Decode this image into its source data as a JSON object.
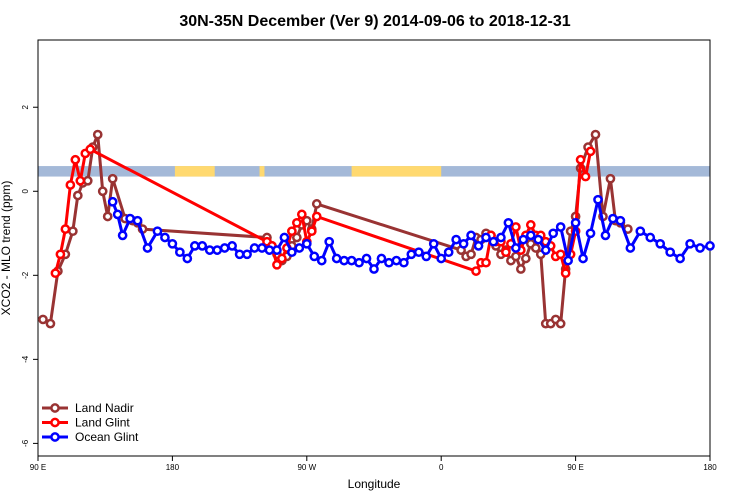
{
  "chart_data": {
    "type": "line",
    "title": "30N-35N December (Ver 9)   2014-09-06 to 2018-12-31",
    "xlabel": "Longitude",
    "ylabel": "XCO2 - MLO trend (ppm)",
    "xlim": [
      -90,
      180
    ],
    "ylim": [
      -6.3,
      3.6
    ],
    "x_ticks": [
      {
        "value": -90,
        "label": "90 E"
      },
      {
        "value": -36,
        "label": "180"
      },
      {
        "value": 18,
        "label": "90 W"
      },
      {
        "value": 72,
        "label": "0"
      },
      {
        "value": 126,
        "label": "90 E"
      },
      {
        "value": 180,
        "label": "180"
      }
    ],
    "y_ticks": [
      {
        "value": 2,
        "label": "2"
      },
      {
        "value": 0,
        "label": "0"
      },
      {
        "value": -2,
        "label": "-2"
      },
      {
        "value": -4,
        "label": "-4"
      },
      {
        "value": -6,
        "label": "-6"
      }
    ],
    "grid": false,
    "legend_position": "bottom-left",
    "land_ocean_band": {
      "y_range": [
        0.35,
        0.6
      ],
      "ocean_color": "#a4b9d8",
      "land_color": "#ffd970",
      "land_segments": [
        [
          -35,
          -19
        ],
        [
          -1,
          1
        ],
        [
          36,
          72
        ]
      ]
    },
    "series": [
      {
        "name": "Land Nadir",
        "color": "#993333",
        "x": [
          -88,
          -85,
          -82,
          -79,
          -76,
          -74,
          -72,
          -70,
          -68,
          -66,
          -64,
          -62,
          -60,
          -55,
          -52,
          -50,
          -48,
          2,
          4,
          6,
          8,
          10,
          12,
          14,
          16,
          18,
          20,
          22,
          80,
          82,
          84,
          86,
          88,
          90,
          92,
          94,
          96,
          98,
          100,
          102,
          104,
          106,
          108,
          110,
          112,
          114,
          116,
          118,
          120,
          122,
          124,
          126,
          128,
          131,
          134,
          137,
          140,
          142,
          144,
          147
        ],
        "y": [
          -3.05,
          -3.15,
          -1.9,
          -1.5,
          -0.95,
          -0.1,
          0.2,
          0.25,
          1.05,
          1.35,
          0.0,
          -0.6,
          0.3,
          -0.65,
          -0.7,
          -0.75,
          -0.9,
          -1.1,
          -1.3,
          -1.5,
          -1.65,
          -1.55,
          -1.3,
          -1.1,
          -0.8,
          -0.7,
          -0.9,
          -0.3,
          -1.4,
          -1.55,
          -1.5,
          -1.1,
          -1.15,
          -1.0,
          -1.05,
          -1.3,
          -1.5,
          -1.4,
          -1.65,
          -1.55,
          -1.85,
          -1.6,
          -1.25,
          -1.35,
          -1.5,
          -3.15,
          -3.15,
          -3.05,
          -3.15,
          -1.85,
          -0.95,
          -0.6,
          0.55,
          1.05,
          1.35,
          -0.6,
          0.3,
          -0.7,
          -0.75,
          -0.9
        ]
      },
      {
        "name": "Land Glint",
        "color": "#ff0000",
        "x": [
          -83,
          -81,
          -79,
          -77,
          -75,
          -73,
          -71,
          -69,
          2,
          4,
          6,
          8,
          10,
          12,
          14,
          16,
          18,
          20,
          22,
          86,
          88,
          90,
          92,
          94,
          96,
          98,
          100,
          102,
          104,
          106,
          108,
          110,
          112,
          114,
          116,
          118,
          120,
          122,
          124,
          126,
          128,
          130,
          132
        ],
        "y": [
          -1.95,
          -1.5,
          -0.9,
          0.15,
          0.75,
          0.25,
          0.9,
          1.0,
          -1.2,
          -1.3,
          -1.75,
          -1.6,
          -1.35,
          -0.95,
          -0.75,
          -0.55,
          -1.2,
          -0.95,
          -0.6,
          -1.9,
          -1.7,
          -1.7,
          -1.05,
          -1.2,
          -1.2,
          -1.45,
          -1.25,
          -0.85,
          -1.4,
          -1.05,
          -0.8,
          -1.05,
          -1.05,
          -1.2,
          -1.3,
          -1.55,
          -1.5,
          -1.95,
          -1.5,
          -0.95,
          0.75,
          0.35,
          0.95
        ]
      },
      {
        "name": "Ocean Glint",
        "color": "#0000ff",
        "x": [
          -60,
          -58,
          -56,
          -53,
          -50,
          -46,
          -42,
          -39,
          -36,
          -33,
          -30,
          -27,
          -24,
          -21,
          -18,
          -15,
          -12,
          -9,
          -6,
          -3,
          0,
          3,
          6,
          9,
          12,
          15,
          18,
          21,
          24,
          27,
          30,
          33,
          36,
          39,
          42,
          45,
          48,
          51,
          54,
          57,
          60,
          63,
          66,
          69,
          72,
          75,
          78,
          81,
          84,
          87,
          90,
          93,
          96,
          99,
          102,
          105,
          108,
          111,
          114,
          117,
          120,
          123,
          126,
          129,
          132,
          135,
          138,
          141,
          144,
          148,
          152,
          156,
          160,
          164,
          168,
          172,
          176,
          180
        ],
        "y": [
          -0.25,
          -0.55,
          -1.05,
          -0.65,
          -0.7,
          -1.35,
          -0.95,
          -1.1,
          -1.25,
          -1.45,
          -1.6,
          -1.3,
          -1.3,
          -1.4,
          -1.4,
          -1.35,
          -1.3,
          -1.5,
          -1.5,
          -1.35,
          -1.35,
          -1.4,
          -1.4,
          -1.1,
          -1.45,
          -1.35,
          -1.25,
          -1.55,
          -1.65,
          -1.2,
          -1.6,
          -1.65,
          -1.65,
          -1.7,
          -1.6,
          -1.85,
          -1.6,
          -1.7,
          -1.65,
          -1.7,
          -1.5,
          -1.45,
          -1.55,
          -1.25,
          -1.6,
          -1.45,
          -1.15,
          -1.25,
          -1.05,
          -1.3,
          -1.1,
          -1.2,
          -1.1,
          -0.75,
          -1.35,
          -1.15,
          -1.05,
          -1.15,
          -1.4,
          -1.0,
          -0.85,
          -1.65,
          -0.75,
          -1.6,
          -1.0,
          -0.2,
          -1.05,
          -0.65,
          -0.7,
          -1.35,
          -0.95,
          -1.1,
          -1.25,
          -1.45,
          -1.6,
          -1.25,
          -1.35,
          -1.3
        ]
      }
    ]
  }
}
